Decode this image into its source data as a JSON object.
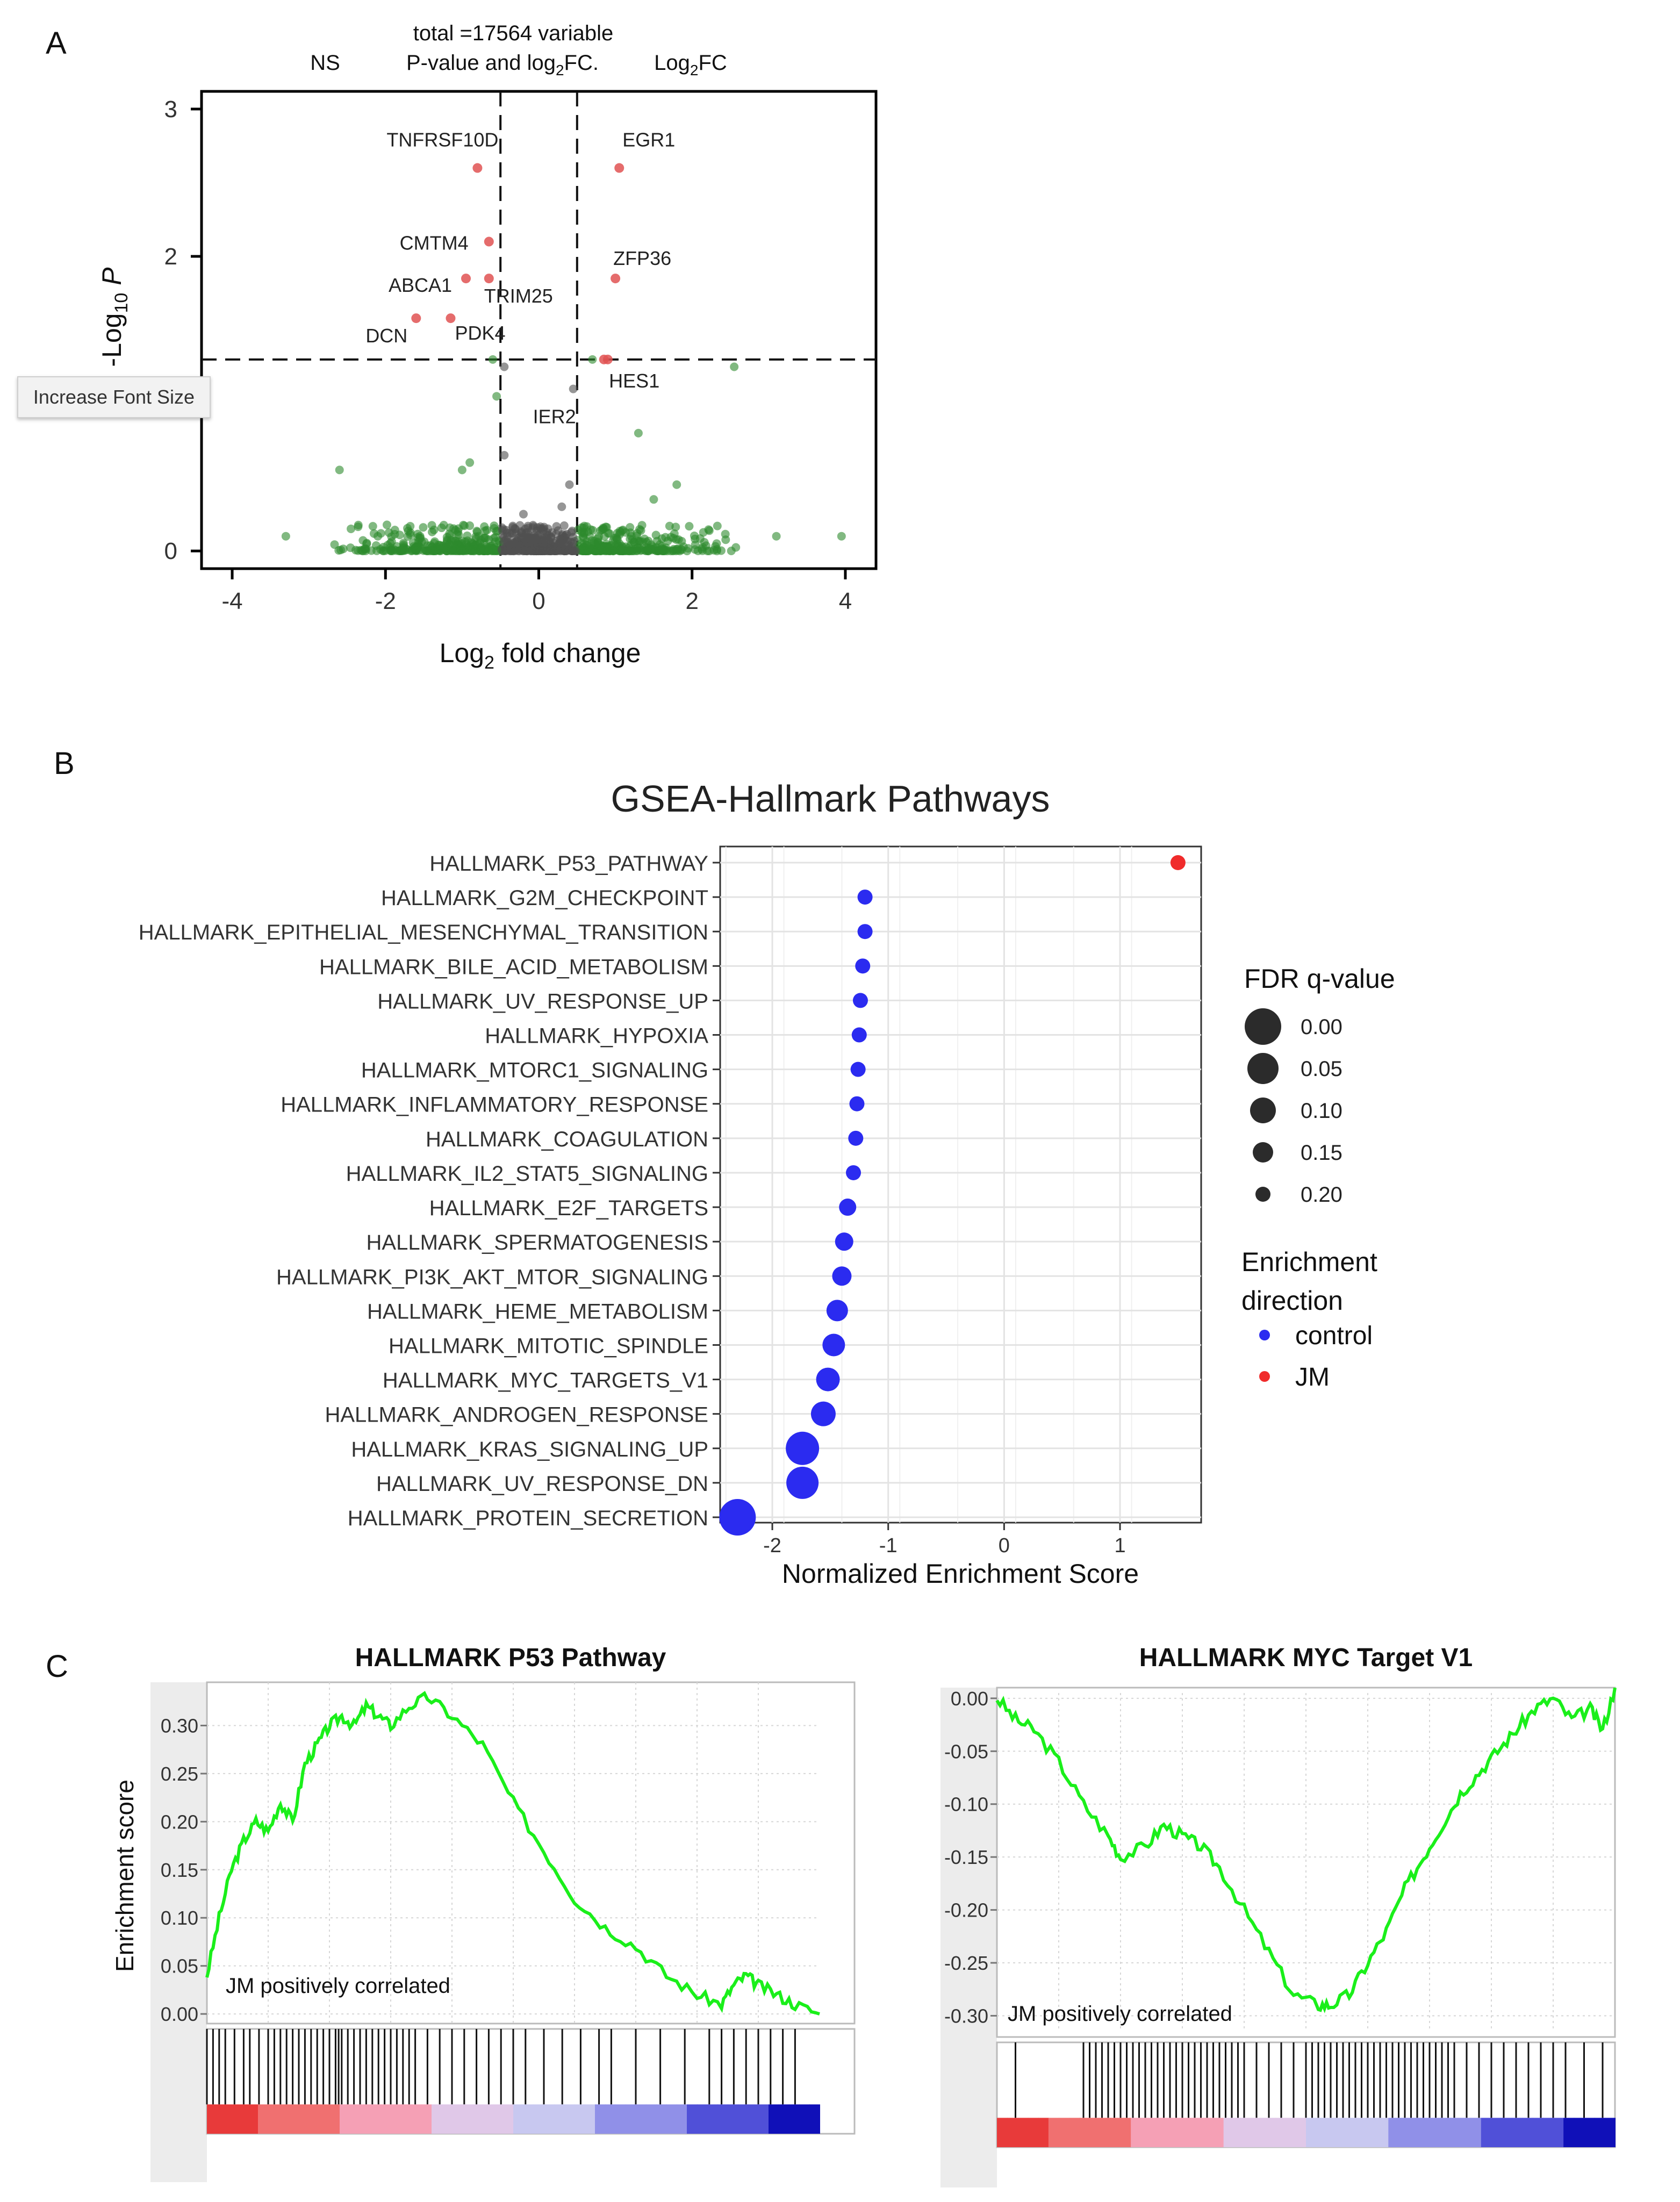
{
  "panels": {
    "a": "A",
    "b": "B",
    "c": "C"
  },
  "tooltip": "Increase Font Size",
  "chart_data": [
    {
      "type": "scatter",
      "panel": "A",
      "legend": {
        "ns": "NS",
        "mid_line1": "total =17564 variable",
        "mid_line2": "P-value and log",
        "mid_sub": "2",
        "mid_tail": "FC.",
        "right_pre": "Log",
        "right_sub": "2",
        "right_tail": "FC"
      },
      "xlabel": {
        "pre": "Log",
        "sub": "2",
        "post": " fold change"
      },
      "ylabel": {
        "pre": "-Log",
        "sub": "10",
        "post": " P"
      },
      "xlim": [
        -4.4,
        4.4
      ],
      "ylim": [
        -0.12,
        3.12
      ],
      "xticks": [
        -4,
        -2,
        0,
        2,
        4
      ],
      "yticks": [
        0,
        1,
        2,
        3
      ],
      "fc_cutoffs": [
        -0.5,
        0.5
      ],
      "p_cutoff": 1.3,
      "labeled_points": [
        {
          "label": "TNFRSF10D",
          "x": -0.8,
          "y": 2.6,
          "color": "#e05252"
        },
        {
          "label": "EGR1",
          "x": 1.05,
          "y": 2.6,
          "color": "#e05252"
        },
        {
          "label": "CMTM4",
          "x": -0.7,
          "y": 2.1,
          "color": "#e05252"
        },
        {
          "label": "ZFP36",
          "x": 1.0,
          "y": 1.85,
          "color": "#e05252"
        },
        {
          "label": "ABCA1",
          "x": -0.95,
          "y": 1.85,
          "color": "#e05252"
        },
        {
          "label": "TRIM25",
          "x": -0.65,
          "y": 1.85,
          "color": "#e05252"
        },
        {
          "label": "DCN",
          "x": -1.6,
          "y": 1.58,
          "color": "#e05252"
        },
        {
          "label": "PDK4",
          "x": -1.15,
          "y": 1.58,
          "color": "#e05252"
        },
        {
          "label": "IER2",
          "x": 0.45,
          "y": 1.05,
          "color": "#6fa86f"
        },
        {
          "label": "HES1",
          "x": 0.65,
          "y": 1.2,
          "color": "#6fa86f"
        }
      ],
      "colors": {
        "ns": "#505050",
        "sig_fc": "#2d8a2d",
        "sig_both": "#e05252"
      }
    },
    {
      "type": "scatter",
      "panel": "B",
      "title": "GSEA-Hallmark Pathways",
      "xlabel": "Normalized Enrichment Score",
      "xlim": [
        -2.45,
        1.7
      ],
      "xticks": [
        -2,
        -1,
        0,
        1
      ],
      "categories": [
        "HALLMARK_P53_PATHWAY",
        "HALLMARK_G2M_CHECKPOINT",
        "HALLMARK_EPITHELIAL_MESENCHYMAL_TRANSITION",
        "HALLMARK_BILE_ACID_METABOLISM",
        "HALLMARK_UV_RESPONSE_UP",
        "HALLMARK_HYPOXIA",
        "HALLMARK_MTORC1_SIGNALING",
        "HALLMARK_INFLAMMATORY_RESPONSE",
        "HALLMARK_COAGULATION",
        "HALLMARK_IL2_STAT5_SIGNALING",
        "HALLMARK_E2F_TARGETS",
        "HALLMARK_SPERMATOGENESIS",
        "HALLMARK_PI3K_AKT_MTOR_SIGNALING",
        "HALLMARK_HEME_METABOLISM",
        "HALLMARK_MITOTIC_SPINDLE",
        "HALLMARK_MYC_TARGETS_V1",
        "HALLMARK_ANDROGEN_RESPONSE",
        "HALLMARK_KRAS_SIGNALING_UP",
        "HALLMARK_UV_RESPONSE_DN",
        "HALLMARK_PROTEIN_SECRETION"
      ],
      "nes": [
        1.5,
        -1.2,
        -1.2,
        -1.22,
        -1.24,
        -1.25,
        -1.26,
        -1.27,
        -1.28,
        -1.3,
        -1.35,
        -1.38,
        -1.4,
        -1.44,
        -1.47,
        -1.52,
        -1.56,
        -1.74,
        -1.74,
        -2.3
      ],
      "fdr": [
        0.2,
        0.2,
        0.2,
        0.2,
        0.2,
        0.2,
        0.2,
        0.2,
        0.2,
        0.2,
        0.18,
        0.17,
        0.16,
        0.14,
        0.13,
        0.12,
        0.11,
        0.03,
        0.04,
        0.0
      ],
      "direction": [
        "JM",
        "control",
        "control",
        "control",
        "control",
        "control",
        "control",
        "control",
        "control",
        "control",
        "control",
        "control",
        "control",
        "control",
        "control",
        "control",
        "control",
        "control",
        "control",
        "control"
      ],
      "legend_size": {
        "title": "FDR q-value",
        "values": [
          "0.00",
          "0.05",
          "0.10",
          "0.15",
          "0.20"
        ]
      },
      "legend_color": {
        "title_line1": "Enrichment",
        "title_line2": "direction",
        "items": [
          {
            "name": "control",
            "color": "#2b2bf0"
          },
          {
            "name": "JM",
            "color": "#f02b2b"
          }
        ]
      }
    },
    {
      "type": "line",
      "panel": "C",
      "title": "HALLMARK P53 Pathway",
      "ylabel": "Enrichment score",
      "annotation": "JM positively correlated",
      "ylim": [
        -0.01,
        0.345
      ],
      "yticks": [
        "0.00",
        "0.05",
        "0.10",
        "0.15",
        "0.20",
        "0.25",
        "0.30"
      ],
      "x_fraction": [
        0.0,
        0.02,
        0.04,
        0.06,
        0.08,
        0.1,
        0.12,
        0.14,
        0.16,
        0.18,
        0.2,
        0.22,
        0.24,
        0.26,
        0.28,
        0.3,
        0.33,
        0.36,
        0.4,
        0.45,
        0.5,
        0.55,
        0.6,
        0.65,
        0.7,
        0.75,
        0.8,
        0.84,
        0.86,
        0.88,
        0.9,
        0.93,
        0.96,
        1.0
      ],
      "values": [
        0.04,
        0.1,
        0.15,
        0.18,
        0.2,
        0.19,
        0.22,
        0.2,
        0.26,
        0.28,
        0.3,
        0.31,
        0.3,
        0.32,
        0.31,
        0.3,
        0.32,
        0.33,
        0.31,
        0.28,
        0.22,
        0.17,
        0.12,
        0.09,
        0.07,
        0.04,
        0.02,
        0.01,
        0.03,
        0.04,
        0.03,
        0.02,
        0.01,
        0.0
      ],
      "hits": [
        0.0,
        0.01,
        0.02,
        0.03,
        0.045,
        0.06,
        0.07,
        0.085,
        0.1,
        0.11,
        0.12,
        0.13,
        0.14,
        0.15,
        0.16,
        0.17,
        0.18,
        0.19,
        0.2,
        0.21,
        0.215,
        0.22,
        0.23,
        0.24,
        0.25,
        0.26,
        0.27,
        0.28,
        0.29,
        0.3,
        0.31,
        0.32,
        0.33,
        0.34,
        0.36,
        0.38,
        0.4,
        0.42,
        0.44,
        0.46,
        0.48,
        0.5,
        0.52,
        0.55,
        0.58,
        0.61,
        0.64,
        0.66,
        0.7,
        0.74,
        0.78,
        0.82,
        0.84,
        0.86,
        0.88,
        0.9,
        0.92,
        0.94,
        0.96
      ],
      "line_color": "#1aef1a"
    },
    {
      "type": "line",
      "panel": "C",
      "title": "HALLMARK MYC Target V1",
      "annotation": "JM positively correlated",
      "ylim": [
        -0.315,
        0.005
      ],
      "yticks": [
        "0.00",
        "-0.05",
        "-0.10",
        "-0.15",
        "-0.20",
        "-0.25",
        "-0.30"
      ],
      "x_fraction": [
        0.0,
        0.03,
        0.06,
        0.1,
        0.14,
        0.18,
        0.2,
        0.24,
        0.27,
        0.3,
        0.33,
        0.36,
        0.4,
        0.44,
        0.48,
        0.52,
        0.54,
        0.57,
        0.6,
        0.63,
        0.66,
        0.69,
        0.72,
        0.75,
        0.78,
        0.81,
        0.84,
        0.87,
        0.9,
        0.93,
        0.96,
        0.98,
        1.0
      ],
      "values": [
        0.0,
        -0.02,
        -0.03,
        -0.06,
        -0.1,
        -0.13,
        -0.15,
        -0.14,
        -0.12,
        -0.13,
        -0.14,
        -0.16,
        -0.2,
        -0.24,
        -0.28,
        -0.29,
        -0.29,
        -0.28,
        -0.25,
        -0.22,
        -0.18,
        -0.15,
        -0.12,
        -0.09,
        -0.07,
        -0.05,
        -0.03,
        -0.01,
        0.0,
        -0.02,
        -0.01,
        -0.03,
        0.01
      ],
      "hits": [
        0.03,
        0.14,
        0.15,
        0.16,
        0.17,
        0.18,
        0.19,
        0.2,
        0.21,
        0.22,
        0.23,
        0.24,
        0.25,
        0.26,
        0.27,
        0.28,
        0.29,
        0.3,
        0.31,
        0.32,
        0.33,
        0.34,
        0.35,
        0.36,
        0.37,
        0.38,
        0.39,
        0.4,
        0.42,
        0.44,
        0.46,
        0.48,
        0.5,
        0.51,
        0.52,
        0.53,
        0.54,
        0.55,
        0.56,
        0.57,
        0.58,
        0.59,
        0.6,
        0.61,
        0.62,
        0.63,
        0.64,
        0.65,
        0.66,
        0.67,
        0.68,
        0.69,
        0.7,
        0.71,
        0.72,
        0.73,
        0.74,
        0.76,
        0.78,
        0.8,
        0.82,
        0.84,
        0.86,
        0.88,
        0.9,
        0.92,
        0.95,
        0.98
      ],
      "line_color": "#1aef1a"
    }
  ]
}
